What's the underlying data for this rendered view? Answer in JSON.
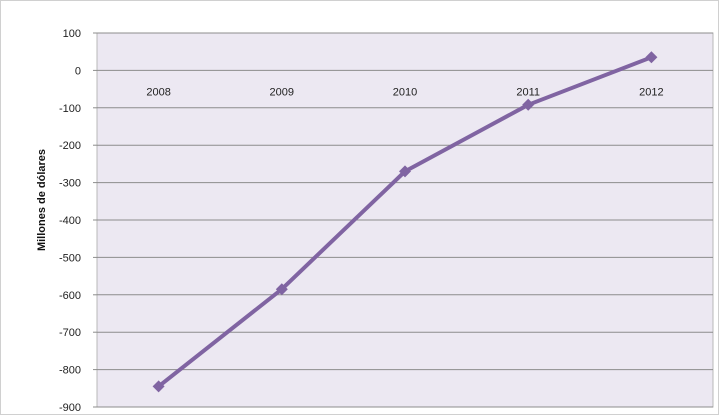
{
  "chart_data": {
    "type": "line",
    "title": "",
    "xlabel": "",
    "ylabel": "Millones de dólares",
    "categories": [
      "2008",
      "2009",
      "2010",
      "2011",
      "2012"
    ],
    "series": [
      {
        "values": [
          -845,
          -585,
          -270,
          -92,
          35
        ]
      }
    ],
    "ylim": [
      -900,
      100
    ],
    "yticks": [
      100,
      0,
      -100,
      -200,
      -300,
      -400,
      -500,
      -600,
      -700,
      -800,
      -900
    ],
    "grid": true,
    "legend": "none",
    "colors": {
      "line": "#8064a2",
      "marker": "#8064a2",
      "plot_background": "#ece8f2",
      "grid": "#8c8c8c"
    }
  }
}
